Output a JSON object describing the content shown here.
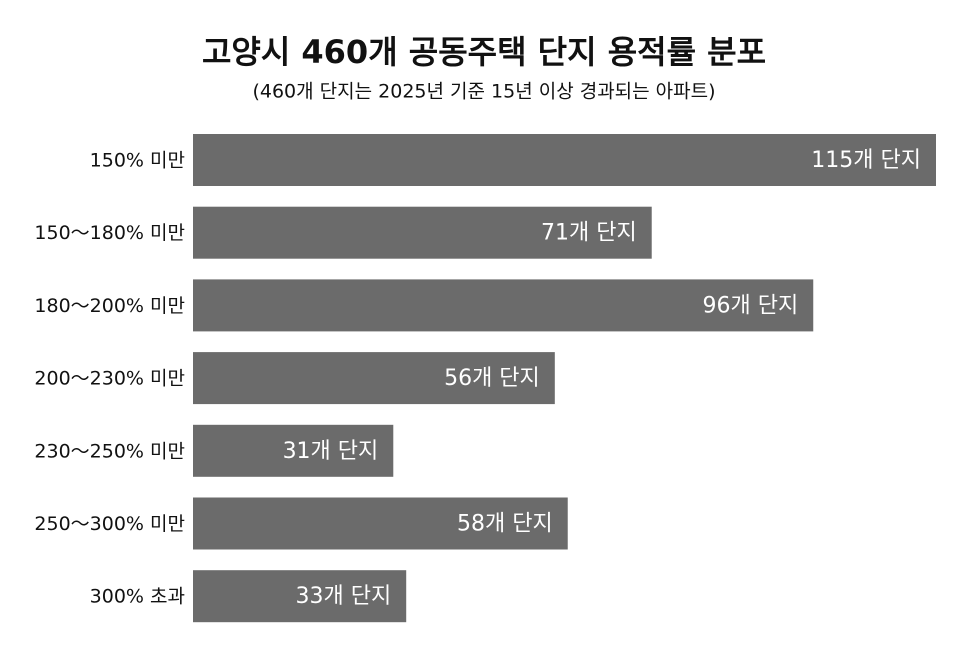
{
  "chart_data": {
    "type": "bar",
    "orientation": "horizontal",
    "title": "고양시 460개 공동주택 단지 용적률 분포",
    "subtitle": "(460개 단지는 2025년 기준 15년 이상 경과되는 아파트)",
    "categories": [
      "150% 미만",
      "150～180% 미만",
      "180～200% 미만",
      "200～230% 미만",
      "230～250% 미만",
      "250～300% 미만",
      "300% 초과"
    ],
    "values": [
      115,
      71,
      96,
      56,
      31,
      58,
      33
    ],
    "value_labels": [
      "115개 단지",
      "71개 단지",
      "96개 단지",
      "56개 단지",
      "31개 단지",
      "58개 단지",
      "33개 단지"
    ],
    "color": "#6b6b6b"
  }
}
